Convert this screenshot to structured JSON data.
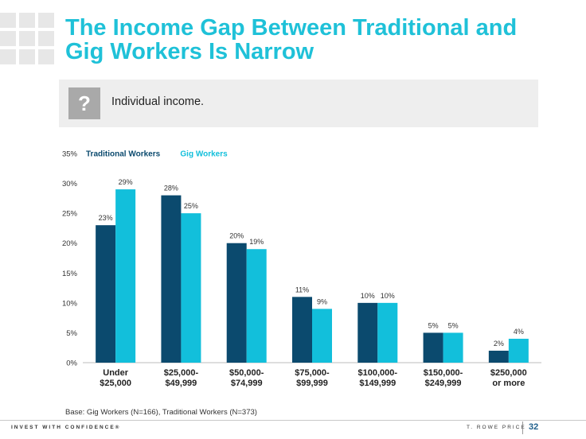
{
  "title": "The Income Gap Between Traditional and Gig Workers Is Narrow",
  "question": {
    "icon_char": "?",
    "icon": "question-mark-icon",
    "text": "Individual income."
  },
  "chart_data": {
    "type": "bar",
    "categories": [
      "Under\n$25,000",
      "$25,000-\n$49,999",
      "$50,000-\n$74,999",
      "$75,000-\n$99,999",
      "$100,000-\n$149,999",
      "$150,000-\n$249,999",
      "$250,000\nor more"
    ],
    "series": [
      {
        "name": "Traditional Workers",
        "color": "#0b4a6e",
        "values": [
          23,
          28,
          20,
          11,
          10,
          5,
          2
        ]
      },
      {
        "name": "Gig Workers",
        "color": "#12bfdb",
        "values": [
          29,
          25,
          19,
          9,
          10,
          5,
          4
        ]
      }
    ],
    "yticks": [
      "0%",
      "5%",
      "10%",
      "15%",
      "20%",
      "25%",
      "30%",
      "35%"
    ],
    "ylim": [
      0,
      35
    ],
    "value_suffix": "%",
    "legend_position": "top-left",
    "grid": false
  },
  "footnote": "Base: Gig Workers (N=166), Traditional Workers (N=373)",
  "footer": {
    "tagline": "INVEST WITH CONFIDENCE®",
    "brand": "T. ROWE PRICE",
    "page_number": "32"
  }
}
